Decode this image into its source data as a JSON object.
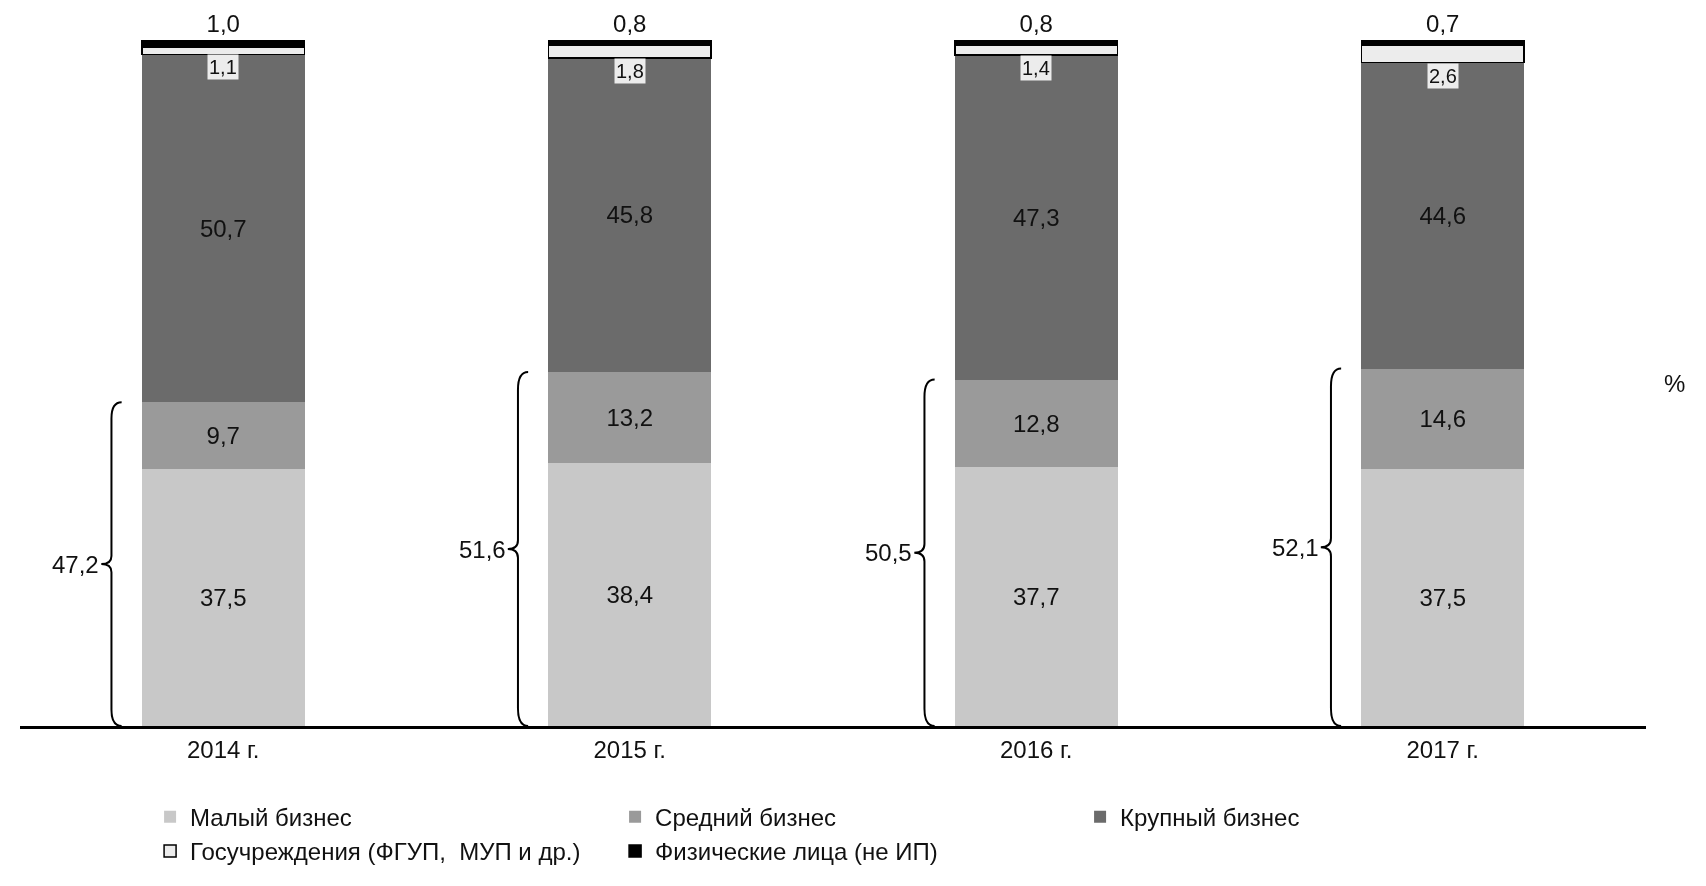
{
  "chart_data": {
    "type": "bar",
    "stacked": true,
    "categories": [
      "2014 г.",
      "2015 г.",
      "2016 г.",
      "2017 г."
    ],
    "ylabel": "%",
    "ylim": [
      0,
      100
    ],
    "tick_labels": "x",
    "legend": "bottom",
    "series": [
      {
        "name": "Малый бизнес",
        "color": "#c8c8c8",
        "values": [
          37.5,
          38.4,
          37.7,
          37.5
        ],
        "value_labels": [
          "37,5",
          "38,4",
          "37,7",
          "37,5"
        ]
      },
      {
        "name": "Средний бизнес",
        "color": "#9a9a9a",
        "values": [
          9.7,
          13.2,
          12.8,
          14.6
        ],
        "value_labels": [
          "9,7",
          "13,2",
          "12,8",
          "14,6"
        ]
      },
      {
        "name": "Крупный бизнес",
        "color": "#6b6b6b",
        "values": [
          50.7,
          45.8,
          47.3,
          44.6
        ],
        "value_labels": [
          "50,7",
          "45,8",
          "47,3",
          "44,6"
        ]
      },
      {
        "name": "Госучреждения (ФГУП,  МУП и др.)",
        "color": "#ececec",
        "values": [
          1.1,
          1.8,
          1.4,
          2.6
        ],
        "value_labels": [
          "1,1",
          "1,8",
          "1,4",
          "2,6"
        ]
      },
      {
        "name": "Физические лица (не ИП)",
        "color": "#000000",
        "values": [
          1.0,
          0.8,
          0.8,
          0.7
        ],
        "value_labels": [
          "1,0",
          "0,8",
          "0,8",
          "0,7"
        ]
      }
    ],
    "annotations": [
      "47,2",
      "51,6",
      "50,5",
      "52,1"
    ]
  }
}
